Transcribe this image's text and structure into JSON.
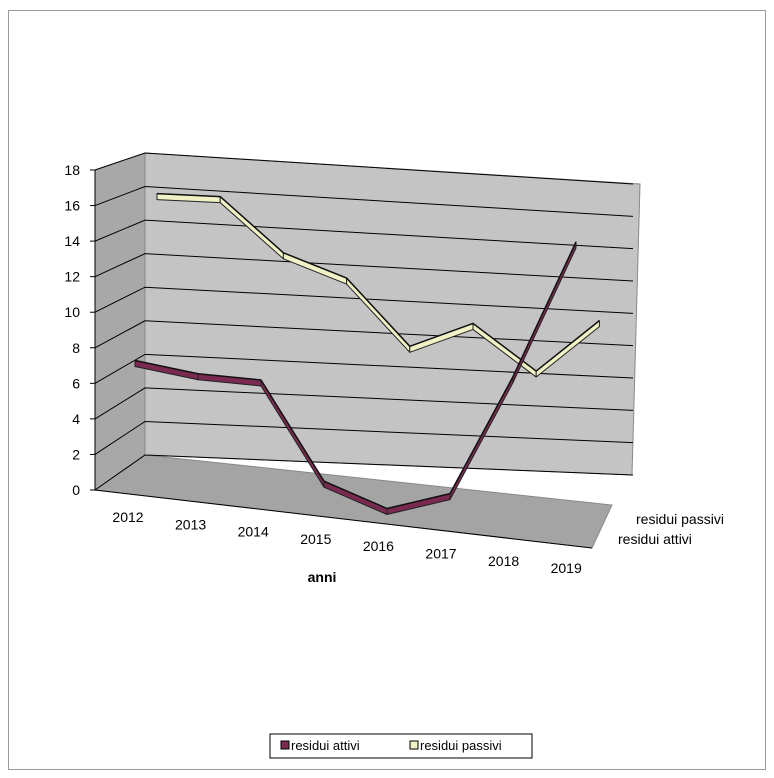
{
  "chart_data": {
    "type": "line",
    "title": "",
    "xlabel": "anni",
    "ylabel": "",
    "categories": [
      "2012",
      "2013",
      "2014",
      "2015",
      "2016",
      "2017",
      "2018",
      "2019"
    ],
    "ylim": [
      0,
      18
    ],
    "yticks": [
      "0",
      "2",
      "4",
      "6",
      "8",
      "10",
      "12",
      "14",
      "16",
      "18"
    ],
    "depth_labels": [
      "residui passivi",
      "residui attivi"
    ],
    "series": [
      {
        "name": "residui attivi",
        "values": [
          7.3,
          6.9,
          6.9,
          1.5,
          0.3,
          1.5,
          8.5,
          16.5
        ],
        "color": "#7a2a50"
      },
      {
        "name": "residui passivi",
        "values": [
          15.6,
          15.6,
          12.5,
          11.2,
          7.4,
          8.9,
          6.3,
          9.4
        ],
        "color": "#f1f1c6"
      }
    ],
    "legend": [
      "residui attivi",
      "residui passivi"
    ],
    "legend_position": "bottom",
    "grid": true
  }
}
